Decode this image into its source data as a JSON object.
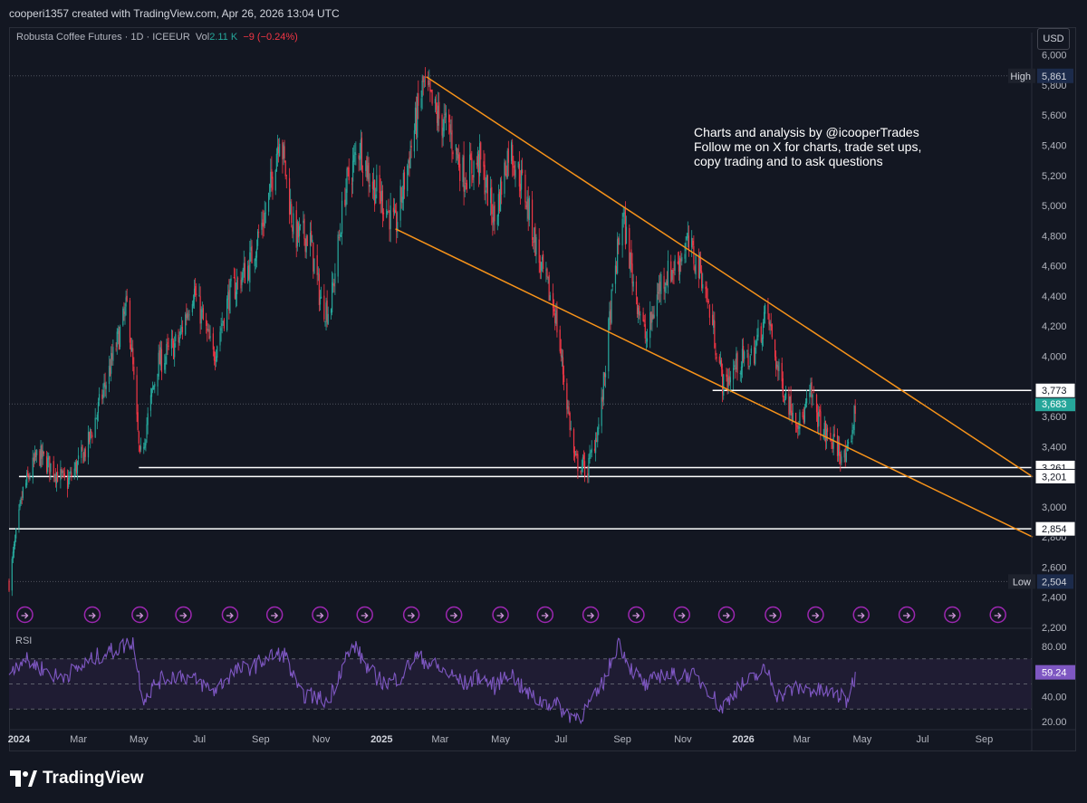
{
  "header": {
    "credit": "cooperi1357 created with TradingView.com, Apr 26, 2026 13:04 UTC"
  },
  "legend": {
    "symbol": "Robusta Coffee Futures · 1D · ICEEUR",
    "vol_label": "Vol",
    "vol_value": "2.11 K",
    "change": "−9 (−0.24%)"
  },
  "currency_button": "USD",
  "annotation": {
    "line1": "Charts and analysis by @icooperTrades",
    "line2": "Follow me on X for charts, trade set ups,",
    "line3": "copy trading and to ask questions"
  },
  "rsi": {
    "label": "RSI",
    "value": "59.24",
    "upper_band": 70,
    "lower_band": 30
  },
  "branding": {
    "logo_text": "TradingView"
  },
  "colors": {
    "up": "#26a69a",
    "down": "#f23645",
    "trendline": "#f7931a",
    "rsi_line": "#7e57c2",
    "rsi_band": "#1f1c33",
    "level_line": "#ffffff",
    "event_marker": "#9c27b0"
  },
  "chart_data": {
    "type": "candlestick",
    "title": "Robusta Coffee Futures · 1D · ICEEUR",
    "ylim": [
      2200,
      6100
    ],
    "y_ticks": [
      2200,
      2400,
      2600,
      2800,
      3000,
      3200,
      3400,
      3600,
      3800,
      4000,
      4200,
      4400,
      4600,
      4800,
      5000,
      5200,
      5400,
      5600,
      5800,
      6000
    ],
    "y_tick_labels": [
      "2,200",
      "2,400",
      "2,600",
      "2,800",
      "3,000",
      "3,200",
      "3,400",
      "3,600",
      "3,800",
      "4,000",
      "4,200",
      "4,400",
      "4,600",
      "4,800",
      "5,000",
      "5,200",
      "5,400",
      "5,600",
      "5,800",
      "6,000"
    ],
    "x_labels": [
      "2024",
      "Mar",
      "May",
      "Jul",
      "Sep",
      "Nov",
      "2025",
      "Mar",
      "May",
      "Jul",
      "Sep",
      "Nov",
      "2026",
      "Mar",
      "May",
      "Jul",
      "Sep"
    ],
    "x_label_dates": [
      "2024-01-01",
      "2024-03-01",
      "2024-05-01",
      "2024-07-01",
      "2024-09-01",
      "2024-11-01",
      "2025-01-01",
      "2025-03-01",
      "2025-05-01",
      "2025-07-01",
      "2025-09-01",
      "2025-11-01",
      "2026-01-01",
      "2026-03-01",
      "2026-05-01",
      "2026-07-01",
      "2026-09-01"
    ],
    "xlim": [
      "2023-12-22",
      "2026-10-20"
    ],
    "high": {
      "label": "High",
      "value": 5861,
      "text": "5,861"
    },
    "low": {
      "label": "Low",
      "value": 2504,
      "text": "2,504"
    },
    "last_price": {
      "value": 3683,
      "text": "3,683"
    },
    "horizontal_levels": [
      {
        "value": 3773,
        "text": "3,773",
        "start": "2025-12-01"
      },
      {
        "value": 3261,
        "text": "3,261",
        "start": "2024-05-01"
      },
      {
        "value": 3201,
        "text": "3,201",
        "start": "2024-01-01"
      },
      {
        "value": 2854,
        "text": "2,854",
        "start": "2023-12-22"
      }
    ],
    "trendlines": [
      {
        "from": [
          "2025-02-15",
          5855
        ],
        "to": [
          "2026-10-20",
          3200
        ]
      },
      {
        "from": [
          "2025-01-15",
          4845
        ],
        "to": [
          "2026-10-20",
          2800
        ]
      }
    ],
    "price_path": [
      [
        "2023-12-22",
        2500
      ],
      [
        "2024-01-05",
        3100
      ],
      [
        "2024-01-20",
        3350
      ],
      [
        "2024-02-05",
        3250
      ],
      [
        "2024-02-18",
        3150
      ],
      [
        "2024-03-10",
        3400
      ],
      [
        "2024-04-01",
        3900
      ],
      [
        "2024-04-20",
        4350
      ],
      [
        "2024-05-02",
        3300
      ],
      [
        "2024-05-20",
        3950
      ],
      [
        "2024-06-10",
        4100
      ],
      [
        "2024-06-25",
        4450
      ],
      [
        "2024-07-15",
        4000
      ],
      [
        "2024-07-31",
        4400
      ],
      [
        "2024-08-20",
        4600
      ],
      [
        "2024-09-08",
        5000
      ],
      [
        "2024-09-20",
        5500
      ],
      [
        "2024-10-05",
        4800
      ],
      [
        "2024-10-20",
        4800
      ],
      [
        "2024-11-01",
        4350
      ],
      [
        "2024-11-10",
        4300
      ],
      [
        "2024-11-25",
        5100
      ],
      [
        "2024-12-10",
        5400
      ],
      [
        "2024-12-22",
        5150
      ],
      [
        "2025-01-05",
        5000
      ],
      [
        "2025-01-15",
        4850
      ],
      [
        "2025-01-28",
        5300
      ],
      [
        "2025-02-12",
        5800
      ],
      [
        "2025-02-25",
        5600
      ],
      [
        "2025-03-10",
        5500
      ],
      [
        "2025-03-25",
        5200
      ],
      [
        "2025-04-10",
        5300
      ],
      [
        "2025-04-25",
        4900
      ],
      [
        "2025-05-10",
        5400
      ],
      [
        "2025-05-25",
        5100
      ],
      [
        "2025-06-10",
        4600
      ],
      [
        "2025-06-25",
        4300
      ],
      [
        "2025-07-05",
        3800
      ],
      [
        "2025-07-15",
        3300
      ],
      [
        "2025-07-28",
        3250
      ],
      [
        "2025-08-10",
        3600
      ],
      [
        "2025-08-20",
        4300
      ],
      [
        "2025-09-01",
        4950
      ],
      [
        "2025-09-12",
        4500
      ],
      [
        "2025-09-25",
        4100
      ],
      [
        "2025-10-10",
        4500
      ],
      [
        "2025-10-25",
        4600
      ],
      [
        "2025-11-05",
        4750
      ],
      [
        "2025-11-20",
        4550
      ],
      [
        "2025-12-01",
        4200
      ],
      [
        "2025-12-12",
        3800
      ],
      [
        "2025-12-26",
        3950
      ],
      [
        "2026-01-10",
        4000
      ],
      [
        "2026-01-25",
        4300
      ],
      [
        "2026-02-05",
        3900
      ],
      [
        "2026-02-15",
        3700
      ],
      [
        "2026-02-28",
        3550
      ],
      [
        "2026-03-10",
        3750
      ],
      [
        "2026-03-22",
        3500
      ],
      [
        "2026-04-05",
        3400
      ],
      [
        "2026-04-15",
        3300
      ],
      [
        "2026-04-25",
        3680
      ]
    ],
    "rsi": {
      "ylim": [
        15,
        90
      ],
      "y_ticks": [
        20,
        40,
        60,
        80
      ],
      "y_tick_labels": [
        "20.00",
        "40.00",
        "60.00",
        "80.00"
      ],
      "path": [
        [
          "2023-12-22",
          60
        ],
        [
          "2024-01-05",
          70
        ],
        [
          "2024-01-25",
          62
        ],
        [
          "2024-02-10",
          55
        ],
        [
          "2024-03-01",
          62
        ],
        [
          "2024-03-20",
          72
        ],
        [
          "2024-04-10",
          78
        ],
        [
          "2024-04-25",
          84
        ],
        [
          "2024-05-05",
          38
        ],
        [
          "2024-05-20",
          52
        ],
        [
          "2024-06-10",
          58
        ],
        [
          "2024-06-30",
          52
        ],
        [
          "2024-07-15",
          44
        ],
        [
          "2024-08-05",
          60
        ],
        [
          "2024-08-25",
          64
        ],
        [
          "2024-09-10",
          72
        ],
        [
          "2024-09-25",
          74
        ],
        [
          "2024-10-10",
          42
        ],
        [
          "2024-10-25",
          40
        ],
        [
          "2024-11-08",
          36
        ],
        [
          "2024-11-25",
          70
        ],
        [
          "2024-12-05",
          80
        ],
        [
          "2024-12-20",
          60
        ],
        [
          "2025-01-05",
          50
        ],
        [
          "2025-01-20",
          56
        ],
        [
          "2025-02-05",
          72
        ],
        [
          "2025-02-20",
          66
        ],
        [
          "2025-03-10",
          58
        ],
        [
          "2025-03-25",
          50
        ],
        [
          "2025-04-10",
          56
        ],
        [
          "2025-04-25",
          48
        ],
        [
          "2025-05-10",
          60
        ],
        [
          "2025-05-25",
          44
        ],
        [
          "2025-06-10",
          36
        ],
        [
          "2025-06-25",
          34
        ],
        [
          "2025-07-08",
          26
        ],
        [
          "2025-07-20",
          24
        ],
        [
          "2025-08-05",
          40
        ],
        [
          "2025-08-15",
          55
        ],
        [
          "2025-08-28",
          84
        ],
        [
          "2025-09-10",
          62
        ],
        [
          "2025-09-25",
          48
        ],
        [
          "2025-10-10",
          58
        ],
        [
          "2025-10-25",
          56
        ],
        [
          "2025-11-08",
          58
        ],
        [
          "2025-11-25",
          48
        ],
        [
          "2025-12-10",
          30
        ],
        [
          "2025-12-25",
          46
        ],
        [
          "2026-01-10",
          54
        ],
        [
          "2026-01-25",
          62
        ],
        [
          "2026-02-05",
          40
        ],
        [
          "2026-02-20",
          46
        ],
        [
          "2026-03-05",
          46
        ],
        [
          "2026-03-20",
          44
        ],
        [
          "2026-04-05",
          42
        ],
        [
          "2026-04-15",
          36
        ],
        [
          "2026-04-25",
          59
        ]
      ]
    },
    "event_markers": [
      "2024-01-07",
      "2024-03-15",
      "2024-05-02",
      "2024-06-15",
      "2024-08-01",
      "2024-09-15",
      "2024-10-31",
      "2024-12-15",
      "2025-01-31",
      "2025-03-15",
      "2025-05-01",
      "2025-06-15",
      "2025-07-31",
      "2025-09-15",
      "2025-10-31",
      "2025-12-15",
      "2026-01-31",
      "2026-03-15",
      "2026-04-30",
      "2026-06-15",
      "2026-07-31",
      "2026-09-15"
    ]
  }
}
